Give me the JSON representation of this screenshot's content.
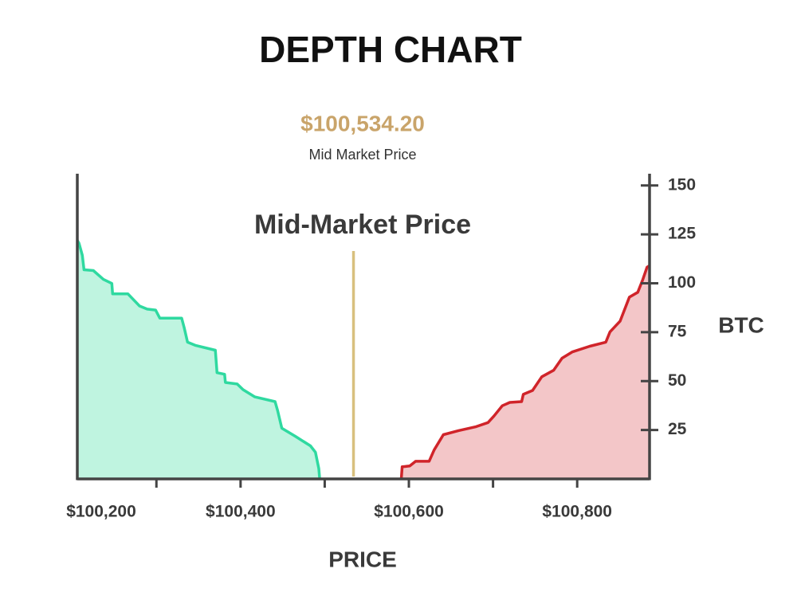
{
  "chart_data": {
    "type": "area",
    "title": "DEPTH CHART",
    "mid_price": {
      "value": 100534.2,
      "label": "$100,534.20"
    },
    "mid_price_caption": "Mid Market Price",
    "annotation": "Mid-Market Price",
    "x_label": "PRICE",
    "y_label": "BTC",
    "xlim": [
      100206,
      100886
    ],
    "ylim": [
      0,
      156
    ],
    "xticks": [
      {
        "value": 100200,
        "label": "$100,200"
      },
      {
        "value": 100400,
        "label": "$100,400"
      },
      {
        "value": 100600,
        "label": "$100,600"
      },
      {
        "value": 100800,
        "label": "$100,800"
      }
    ],
    "xminor_ticks": [
      100300,
      100500,
      100700
    ],
    "yticks": [
      25,
      50,
      75,
      100,
      125,
      150
    ],
    "series": [
      {
        "color": "#2fd9a0",
        "fill": "#bff4e0",
        "x": [
          100206,
          100208,
          100212,
          100214,
          100225,
          100237,
          100247,
          100248,
          100266,
          100280,
          100289,
          100299,
          100304,
          100330,
          100333,
          100337,
          100346,
          100370,
          100372,
          100381,
          100382,
          100396,
          100403,
          100417,
          100441,
          100444,
          100449,
          100465,
          100483,
          100489,
          100493,
          100494
        ],
        "values": [
          122,
          120.5,
          114.3,
          106.9,
          106.5,
          102.0,
          99.9,
          94.6,
          94.6,
          88.4,
          86.8,
          86.3,
          82.2,
          82.2,
          77.3,
          69.9,
          68.3,
          65.8,
          54.3,
          53.5,
          49.3,
          48.5,
          45.6,
          41.9,
          39.5,
          35.0,
          25.9,
          21.8,
          16.9,
          13.6,
          5.3,
          0
        ]
      },
      {
        "color": "#d0242a",
        "fill": "#f3c6c8",
        "x": [
          100591,
          100592,
          100601,
          100608,
          100624,
          100630,
          100641,
          100659,
          100680,
          100694,
          100701,
          100711,
          100720,
          100734,
          100736,
          100747,
          100758,
          100772,
          100782,
          100794,
          100815,
          100834,
          100839,
          100851,
          100862,
          100872,
          100878,
          100883,
          100886
        ],
        "values": [
          0,
          6.2,
          6.6,
          9.0,
          9.0,
          14.8,
          22.6,
          24.7,
          26.7,
          28.8,
          32.1,
          37.4,
          39.1,
          39.5,
          43.2,
          45.2,
          52.2,
          55.5,
          61.7,
          64.9,
          67.8,
          69.9,
          75.2,
          80.6,
          92.9,
          95.4,
          102.0,
          108.2,
          109.0
        ]
      }
    ],
    "mid_line_color": "#d8c07e",
    "axis_color": "#444444"
  }
}
